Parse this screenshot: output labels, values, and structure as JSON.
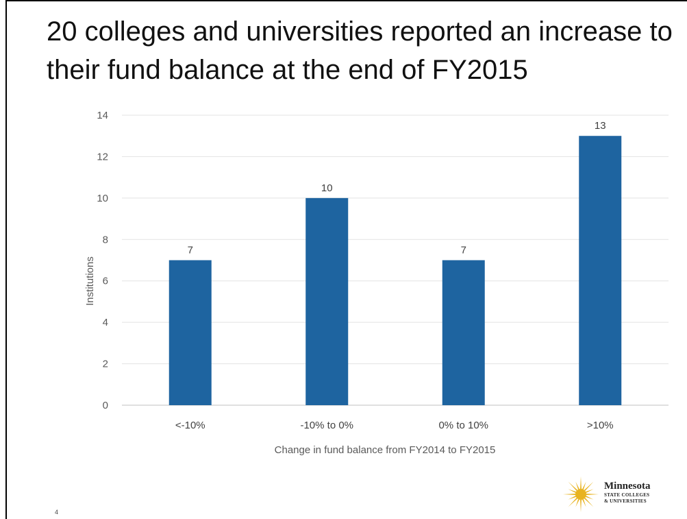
{
  "slide": {
    "title": "20 colleges and universities reported an increase to their fund balance at the end of FY2015",
    "page_number": "4"
  },
  "logo": {
    "line1": "Minnesota",
    "line2": "STATE COLLEGES",
    "line3": "& UNIVERSITIES",
    "color": "#e8b320"
  },
  "chart_data": {
    "type": "bar",
    "categories": [
      "<-10%",
      "-10% to 0%",
      "0% to 10%",
      ">10%"
    ],
    "values": [
      7,
      10,
      7,
      13
    ],
    "data_labels": [
      "7",
      "10",
      "7",
      "13"
    ],
    "title": "",
    "xlabel": "Change in fund balance from FY2014 to FY2015",
    "ylabel": "Institutions",
    "ylim": [
      0,
      14
    ],
    "yticks": [
      0,
      2,
      4,
      6,
      8,
      10,
      12,
      14
    ],
    "grid": true,
    "bar_color": "#1e64a0",
    "legend": "none"
  }
}
